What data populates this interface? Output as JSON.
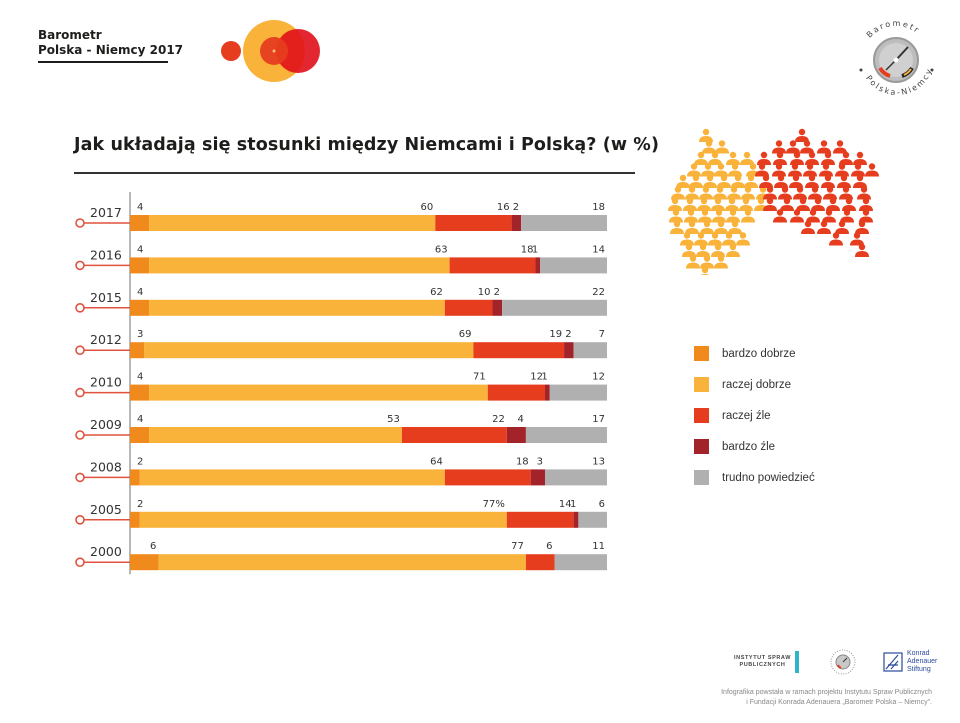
{
  "header": {
    "brand_line1": "Barometr",
    "brand_line2": "Polska - Niemcy 2017",
    "badge_text_top": "Barometr",
    "badge_text_bottom": "Polska-Niemcy"
  },
  "colors": {
    "bardzo_dobrze": "#f08a1c",
    "raczej_dobrze": "#f9b23a",
    "raczej_zle": "#e63d1f",
    "bardzo_zle": "#a3232a",
    "trudno_powiedziec": "#b0b0b0",
    "timeline": "#e0523f",
    "axis": "#888888"
  },
  "chart_data": {
    "type": "bar",
    "orientation": "horizontal-stacked-100",
    "title": "Jak układają się stosunki między Niemcami i Polską? (w %)",
    "xlabel": "",
    "ylabel": "",
    "xlim": [
      0,
      100
    ],
    "categories": [
      "2017",
      "2016",
      "2015",
      "2012",
      "2010",
      "2009",
      "2008",
      "2005",
      "2000"
    ],
    "series": [
      {
        "name": "bardzo dobrze",
        "key": "bardzo_dobrze",
        "values": [
          4,
          4,
          4,
          3,
          4,
          4,
          2,
          2,
          6
        ]
      },
      {
        "name": "raczej dobrze",
        "key": "raczej_dobrze",
        "values": [
          60,
          63,
          62,
          69,
          71,
          53,
          64,
          77,
          77
        ]
      },
      {
        "name": "raczej źle",
        "key": "raczej_zle",
        "values": [
          16,
          18,
          10,
          19,
          12,
          22,
          18,
          14,
          6
        ]
      },
      {
        "name": "bardzo źle",
        "key": "bardzo_zle",
        "values": [
          2,
          1,
          2,
          2,
          1,
          4,
          3,
          1,
          0
        ]
      },
      {
        "name": "trudno powiedzieć",
        "key": "trudno_powiedziec",
        "values": [
          18,
          14,
          22,
          7,
          12,
          17,
          13,
          6,
          11
        ]
      }
    ],
    "value_labels": [
      [
        "4",
        "60",
        "16",
        "2",
        "18"
      ],
      [
        "4",
        "63",
        "18",
        "1",
        "14"
      ],
      [
        "4",
        "62",
        "10",
        "2",
        "22"
      ],
      [
        "3",
        "69",
        "19",
        "2",
        "7"
      ],
      [
        "4",
        "71",
        "12",
        "1",
        "12"
      ],
      [
        "4",
        "53",
        "22",
        "4",
        "17"
      ],
      [
        "2",
        "64",
        "18",
        "3",
        "13"
      ],
      [
        "2",
        "77%",
        "14",
        "1",
        "6"
      ],
      [
        "6",
        "77",
        "6",
        "",
        "11"
      ]
    ],
    "legend": {
      "placement": "right",
      "entries": [
        "bardzo dobrze",
        "raczej dobrze",
        "raczej źle",
        "bardzo źle",
        "trudno powiedzieć"
      ]
    },
    "grid": false
  },
  "footer": {
    "isp_logo_line1": "INSTYTUT SPRAW",
    "isp_logo_line2": "PUBLICZNYCH",
    "kas_logo_line1": "Konrad",
    "kas_logo_line2": "Adenauer",
    "kas_logo_line3": "Stiftung",
    "note_line1": "Infografika powstała w ramach projektu Instytutu Spraw Publicznych",
    "note_line2": "i Fundacji Konrada Adenauera „Barometr Polska – Niemcy\"."
  }
}
